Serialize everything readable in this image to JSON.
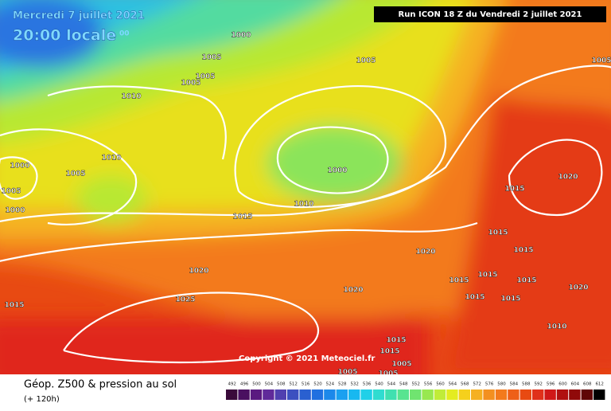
{
  "header": {
    "date": "Mercredi 7 juillet 2021",
    "time": "20:00 locale",
    "time_suffix": "00",
    "run": "Run ICON 18 Z du Vendredi 2 juillet 2021"
  },
  "copyright": "Copyright © 2021 Meteociel.fr",
  "footer": {
    "title": "Géop. Z500 & pression au sol",
    "subtitle": "(+ 120h)"
  },
  "scale": [
    492,
    496,
    500,
    504,
    508,
    512,
    516,
    520,
    524,
    528,
    532,
    536,
    540,
    544,
    548,
    552,
    556,
    560,
    564,
    568,
    572,
    576,
    580,
    584,
    588,
    592,
    596,
    600,
    604,
    608,
    612
  ],
  "isobars": {
    "labels": [
      "1000",
      "1005",
      "1005",
      "1005",
      "1010",
      "1005",
      "1010",
      "1000",
      "1005",
      "1005",
      "1000",
      "1000",
      "1010",
      "1015",
      "1020",
      "1015",
      "1015",
      "1015",
      "1020",
      "1020",
      "1020",
      "1015",
      "1025",
      "1015",
      "1015",
      "1015",
      "1020",
      "1015",
      "1015",
      "1010",
      "1015",
      "1015",
      "1005",
      "1005",
      "1005",
      "1005"
    ]
  }
}
